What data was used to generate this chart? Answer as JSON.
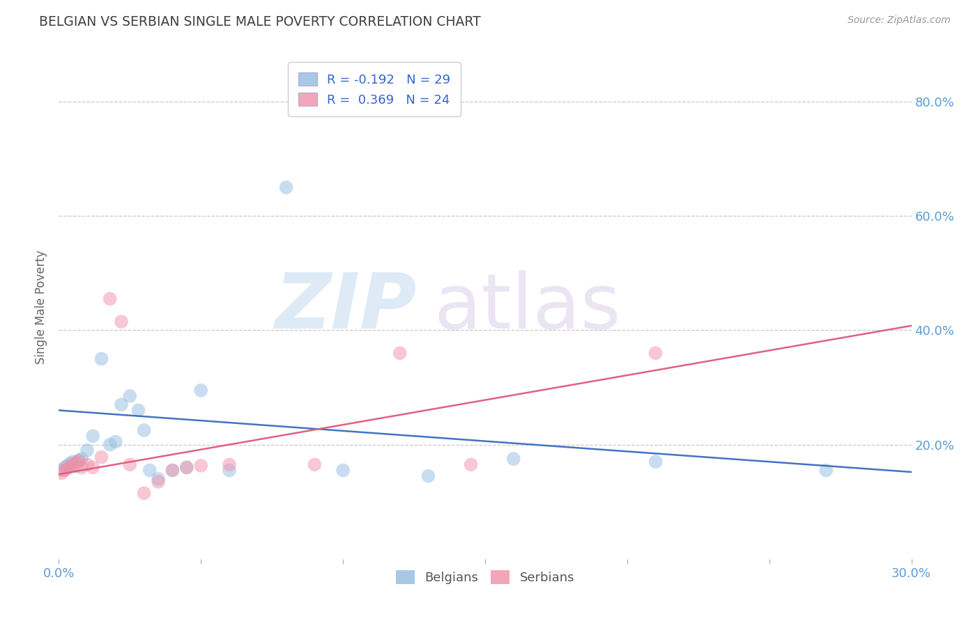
{
  "title": "BELGIAN VS SERBIAN SINGLE MALE POVERTY CORRELATION CHART",
  "source": "Source: ZipAtlas.com",
  "ylabel": "Single Male Poverty",
  "ytick_values": [
    0.2,
    0.4,
    0.6,
    0.8
  ],
  "ytick_labels": [
    "20.0%",
    "40.0%",
    "60.0%",
    "80.0%"
  ],
  "xlim": [
    0.0,
    0.3
  ],
  "ylim": [
    0.0,
    0.88
  ],
  "legend_label_belgians": "Belgians",
  "legend_label_serbians": "Serbians",
  "belgian_color": "#92bce0",
  "serbian_color": "#f090a8",
  "belgian_line_color": "#4472c4",
  "serbian_line_color": "#e06080",
  "background_color": "#ffffff",
  "grid_color": "#c8c8c8",
  "axis_color": "#5b9bd5",
  "title_color": "#404040",
  "belgians_x": [
    0.001,
    0.002,
    0.003,
    0.004,
    0.005,
    0.006,
    0.007,
    0.008,
    0.01,
    0.012,
    0.015,
    0.018,
    0.02,
    0.022,
    0.025,
    0.028,
    0.03,
    0.032,
    0.035,
    0.04,
    0.045,
    0.05,
    0.06,
    0.08,
    0.1,
    0.13,
    0.16,
    0.21,
    0.27
  ],
  "belgians_y": [
    0.155,
    0.16,
    0.163,
    0.167,
    0.17,
    0.162,
    0.172,
    0.175,
    0.19,
    0.215,
    0.35,
    0.2,
    0.205,
    0.27,
    0.285,
    0.26,
    0.225,
    0.155,
    0.14,
    0.155,
    0.16,
    0.295,
    0.155,
    0.65,
    0.155,
    0.145,
    0.175,
    0.17,
    0.155
  ],
  "serbians_x": [
    0.001,
    0.002,
    0.003,
    0.004,
    0.005,
    0.006,
    0.007,
    0.008,
    0.01,
    0.012,
    0.015,
    0.018,
    0.022,
    0.025,
    0.03,
    0.035,
    0.04,
    0.045,
    0.05,
    0.06,
    0.09,
    0.12,
    0.145,
    0.21
  ],
  "serbians_y": [
    0.15,
    0.155,
    0.158,
    0.162,
    0.165,
    0.168,
    0.172,
    0.16,
    0.165,
    0.16,
    0.178,
    0.455,
    0.415,
    0.165,
    0.115,
    0.135,
    0.155,
    0.16,
    0.163,
    0.165,
    0.165,
    0.36,
    0.165,
    0.36
  ],
  "belgian_trend": [
    0.26,
    0.152
  ],
  "serbian_trend": [
    0.148,
    0.408
  ],
  "xtick_positions": [
    0.0,
    0.05,
    0.1,
    0.15,
    0.2,
    0.25,
    0.3
  ],
  "legend1_label": "R = -0.192   N = 29",
  "legend2_label": "R =  0.369   N = 24"
}
